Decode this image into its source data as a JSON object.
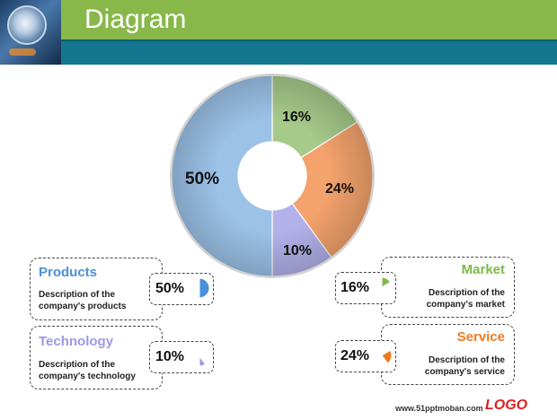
{
  "header": {
    "title": "Diagram"
  },
  "footer": {
    "url": "www.51pptmoban.com",
    "logo": "LOGO"
  },
  "chart_data": {
    "type": "pie",
    "donut": true,
    "slices": [
      {
        "label": "Market",
        "value": 16,
        "display": "16%",
        "color": "#a6ca8a"
      },
      {
        "label": "Service",
        "value": 24,
        "display": "24%",
        "color": "#f4a36c"
      },
      {
        "label": "Technology",
        "value": 10,
        "display": "10%",
        "color": "#b3b1ea"
      },
      {
        "label": "Products",
        "value": 50,
        "display": "50%",
        "color": "#9cc2e8"
      }
    ]
  },
  "cards": {
    "products": {
      "title": "Products",
      "desc1": "Description of the",
      "desc2": "company's products",
      "pct": "50%",
      "color": "#4a90d9"
    },
    "technology": {
      "title": "Technology",
      "desc1": "Description of the",
      "desc2": "company's technology",
      "pct": "10%",
      "color": "#9b98e6"
    },
    "market": {
      "title": "Market",
      "desc1": "Description of the",
      "desc2": "company's market",
      "pct": "16%",
      "color": "#7fb947"
    },
    "service": {
      "title": "Service",
      "desc1": "Description of the",
      "desc2": "company's service",
      "pct": "24%",
      "color": "#f07a22"
    }
  }
}
